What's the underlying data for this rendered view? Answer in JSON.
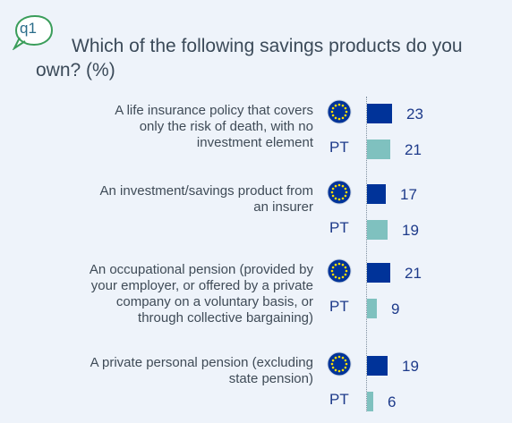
{
  "question": {
    "badge": "q1",
    "title": "Which of the following savings products do you own? (%)"
  },
  "colors": {
    "eu": "#003399",
    "pt": "#7fc1bf",
    "badge": "#3a9d5a"
  },
  "labels": {
    "pt": "PT"
  },
  "chart_data": {
    "type": "bar",
    "orientation": "horizontal",
    "title": "Which of the following savings products do you own? (%)",
    "categories": [
      "A life insurance policy that covers only the risk of death, with no investment element",
      "An investment/savings product from an insurer",
      "An occupational pension (provided by your employer, or offered by a private company on a voluntary basis, or through collective bargaining)",
      "A private personal pension (excluding state pension)"
    ],
    "category_lines": [
      [
        "A life insurance policy that covers",
        "only the risk of death, with no",
        "investment element"
      ],
      [
        "An investment/savings product from",
        "an insurer"
      ],
      [
        "An occupational pension (provided by",
        "your employer, or offered by a private",
        "company on a voluntary basis, or",
        "through collective bargaining)"
      ],
      [
        "A private personal pension (excluding",
        "state pension)"
      ]
    ],
    "series": [
      {
        "name": "EU",
        "symbol": "eu-flag",
        "values": [
          23,
          17,
          21,
          19
        ]
      },
      {
        "name": "PT",
        "values": [
          21,
          19,
          9,
          6
        ]
      }
    ],
    "xlim": [
      0,
      100
    ],
    "grid": false,
    "legend": "none"
  }
}
